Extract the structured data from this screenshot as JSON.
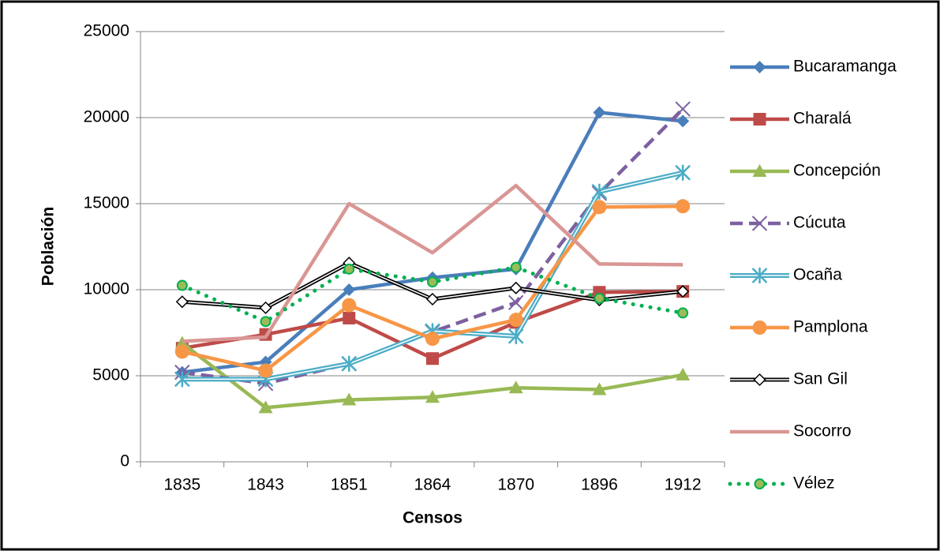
{
  "chart_data": {
    "type": "line",
    "x_label": "Censos",
    "y_label": "Población",
    "categories": [
      "1835",
      "1843",
      "1851",
      "1864",
      "1870",
      "1896",
      "1912"
    ],
    "ylim": [
      0,
      25000
    ],
    "yticks": [
      0,
      5000,
      10000,
      15000,
      20000,
      25000
    ],
    "grid": true,
    "legend": "right",
    "series": [
      {
        "name": "Bucaramanga",
        "color": "#4a7ebb",
        "marker": "diamond",
        "style": "solid",
        "values": [
          5200,
          5800,
          10000,
          10700,
          11200,
          20300,
          19800
        ]
      },
      {
        "name": "Charalá",
        "color": "#be4b48",
        "marker": "square",
        "style": "solid",
        "values": [
          6600,
          7400,
          8350,
          6000,
          8100,
          9850,
          9900
        ]
      },
      {
        "name": "Concepción",
        "color": "#98b954",
        "marker": "triangle",
        "style": "solid",
        "values": [
          6900,
          3150,
          3600,
          3750,
          4300,
          4200,
          5050
        ]
      },
      {
        "name": "Cúcuta",
        "color": "#7d60a0",
        "marker": "x",
        "style": "dashed",
        "values": [
          5200,
          4550,
          5700,
          7550,
          9250,
          15600,
          20500
        ]
      },
      {
        "name": "Ocaña",
        "color": "#4bacc6",
        "marker": "asterisk",
        "style": "double",
        "values": [
          4800,
          4800,
          5700,
          7600,
          7300,
          15700,
          16800
        ]
      },
      {
        "name": "Pamplona",
        "color": "#f79646",
        "marker": "circle",
        "style": "solid",
        "values": [
          6400,
          5300,
          9100,
          7150,
          8250,
          14800,
          14850
        ]
      },
      {
        "name": "San Gil",
        "color": "#000000",
        "marker": "open-diamond",
        "style": "double",
        "values": [
          9300,
          8950,
          11550,
          9450,
          10100,
          9400,
          9900
        ]
      },
      {
        "name": "Socorro",
        "color": "#d99694",
        "marker": "none",
        "style": "solid",
        "values": [
          7000,
          7250,
          15000,
          12150,
          16050,
          11500,
          11450
        ]
      },
      {
        "name": "Vélez",
        "color": "#00b050",
        "marker": "dot",
        "style": "dotted",
        "values": [
          10250,
          8150,
          11200,
          10450,
          11300,
          9500,
          8650
        ]
      }
    ]
  }
}
